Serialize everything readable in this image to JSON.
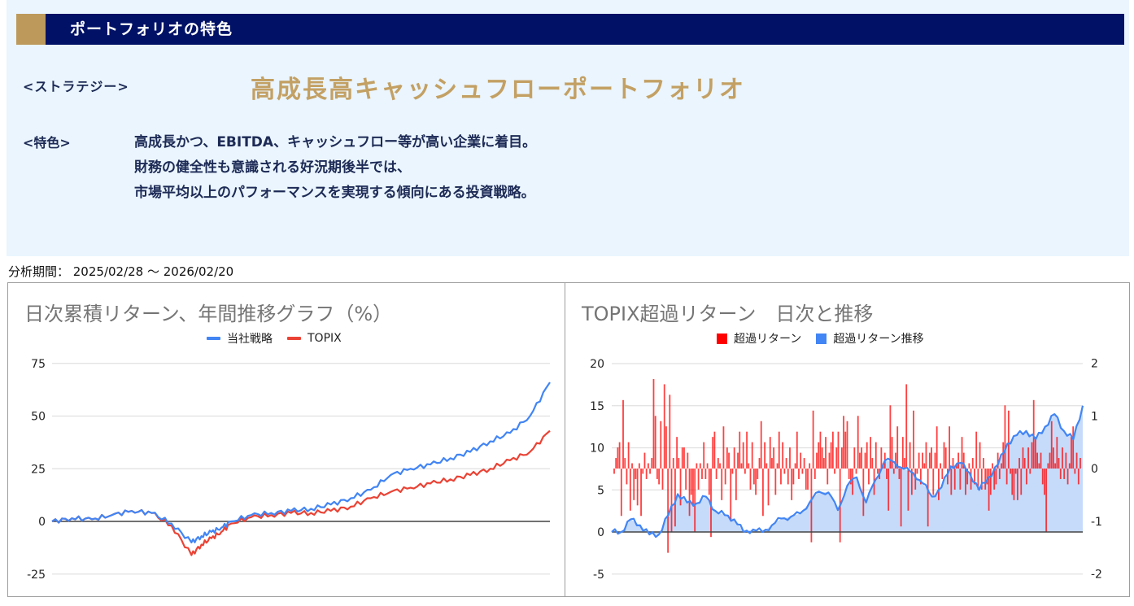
{
  "header": {
    "title": "ポートフォリオの特色",
    "bar_color": "#001166",
    "accent_color": "#bd9a5c"
  },
  "strategy": {
    "label": "<ストラテジー>",
    "name": "高成長高キャッシュフローポートフォリオ",
    "name_color": "#c3a063"
  },
  "features": {
    "label": "<特色>",
    "lines": [
      "高成長かつ、EBITDA、キャッシュフロー等が高い企業に着目。",
      "財務の健全性も意識される好況期後半では、",
      "市場平均以上のパフォーマンスを実現する傾向にある投資戦略。"
    ]
  },
  "period": {
    "text": "分析期間： 2025/02/28 ～ 2026/02/20"
  },
  "chart_data": [
    {
      "type": "line",
      "title": "日次累積リターン、年間推移グラフ（%）",
      "xlabel": "",
      "ylabel": "",
      "ylim": [
        -30,
        80
      ],
      "yticks": [
        75,
        50,
        25,
        0,
        -25
      ],
      "grid": true,
      "legend_position": "top",
      "x": [
        0,
        4,
        8,
        12,
        16,
        20,
        24,
        28,
        30,
        32,
        34,
        36,
        40,
        44,
        48,
        52,
        56,
        60,
        64,
        68,
        72,
        76,
        80,
        84,
        88,
        92,
        96,
        100
      ],
      "series": [
        {
          "name": "当社戦略",
          "color": "#4285f4",
          "values": [
            0,
            1.5,
            1,
            3,
            5,
            4,
            -1,
            -10,
            -7,
            -5,
            -3,
            0,
            3,
            4,
            5,
            6,
            8,
            11,
            15,
            22,
            25,
            27,
            30,
            33,
            38,
            42,
            50,
            66
          ]
        },
        {
          "name": "TOPIX",
          "color": "#ea4335",
          "values": [
            0,
            1.5,
            1,
            3,
            5,
            4,
            -2,
            -16,
            -11,
            -8,
            -5,
            -1,
            2,
            3,
            4,
            4,
            5,
            7,
            11,
            14,
            16,
            18,
            20,
            22,
            25,
            29,
            33,
            43
          ]
        }
      ]
    },
    {
      "type": "bar",
      "title": "TOPIX超過リターン　日次と推移",
      "xlabel": "",
      "ylabel_left": "",
      "ylabel_right": "",
      "ylim_left": [
        -5,
        20
      ],
      "ylim_right": [
        -2,
        2
      ],
      "yticks_left": [
        20,
        15,
        10,
        5,
        0,
        -5
      ],
      "yticks_right": [
        2,
        1,
        0,
        -1,
        -2
      ],
      "grid": true,
      "legend_position": "top",
      "series": [
        {
          "name": "超過リターン",
          "type": "bar",
          "axis": "right",
          "color": "#ff0000",
          "values": [
            -0.1,
            0.2,
            0.4,
            0.5,
            -0.9,
            1.3,
            0.2,
            -0.3,
            0.5,
            -0.8,
            0.1,
            -0.6,
            -0.2,
            -0.7,
            0.1,
            -0.9,
            -0.1,
            0.3,
            -0.2,
            0.1,
            -0.1,
            0.2,
            1.7,
            1.0,
            -0.2,
            -0.3,
            0.9,
            -0.4,
            1.6,
            0.8,
            -1.6,
            1.4,
            -1.2,
            0.2,
            -1.1,
            0.6,
            0.2,
            -0.7,
            0.4,
            0.4,
            -0.4,
            0.3,
            -0.9,
            -0.5,
            -0.7,
            -1.2,
            0.1,
            -0.4,
            0.1,
            -0.2,
            0.5,
            -0.2,
            0.1,
            -0.5,
            -1.3,
            0.6,
            0.7,
            -0.2,
            0.2,
            0.1,
            -0.6,
            0.8,
            -0.3,
            0.4,
            0.3,
            -1.0,
            -0.1,
            0.4,
            -0.6,
            0.3,
            0.7,
            0.1,
            0.5,
            -0.1,
            0.7,
            0.1,
            -0.4,
            0.5,
            -0.3,
            -0.5,
            -0.2,
            0.2,
            0.9,
            -0.9,
            0.5,
            0.1,
            -0.7,
            0.6,
            0.2,
            0.4,
            -0.5,
            0.1,
            0.7,
            -0.3,
            0.5,
            -0.1,
            0.2,
            -0.3,
            0.4,
            -0.6,
            -0.3,
            0.1,
            0.7,
            -0.2,
            0.3,
            -0.1,
            0.2,
            -0.4,
            -0.4,
            0.1,
            -1.4,
            1.1,
            -0.2,
            0.3,
            0.5,
            0.7,
            0.4,
            0.2,
            0.6,
            -0.3,
            0.3,
            0.5,
            0.7,
            -0.1,
            0.4,
            0.7,
            -1.4,
            0.4,
            1.0,
            0.7,
            0.9,
            -0.2,
            -0.3,
            -0.5,
            0.4,
            -0.1,
            1.0,
            0.3,
            0.4,
            -0.9,
            0.3,
            0.5,
            -0.3,
            0.6,
            0.2,
            -0.5,
            0.5,
            -0.1,
            -0.2,
            0.4,
            0.1,
            0.3,
            -0.2,
            -0.8,
            1.2,
            0.6,
            -0.1,
            0.3,
            0.8,
            -0.2,
            -1.1,
            0.6,
            0.2,
            1.6,
            -0.8,
            0.5,
            -0.5,
            1.1,
            -0.4,
            -0.1,
            0.3,
            -0.3,
            0.3,
            0.1,
            0.5,
            -1.1,
            0.3,
            0.4,
            -0.5,
            0.3,
            0.8,
            -0.6,
            0.1,
            -0.2,
            0.5,
            0.4,
            -0.3,
            0.8,
            -0.5,
            0.2,
            -0.4,
            0.1,
            0.3,
            -0.4,
            0.6,
            0.3,
            -0.5,
            -0.3,
            0.1,
            -0.4,
            0.2,
            -0.3,
            0.7,
            -0.4,
            0.5,
            -0.4,
            0.2,
            -0.4,
            -0.3,
            -0.8,
            -0.5,
            0.1,
            -0.4,
            -0.3,
            0.3,
            -0.2,
            0.1,
            0.5,
            1.2,
            -0.3,
            1.1,
            -0.1,
            -0.5,
            -0.6,
            -0.1,
            -0.6,
            0.2,
            -0.5,
            0.4,
            0.2,
            -0.3,
            0.4,
            -0.1,
            0.5,
            1.3,
            0.6,
            0.3,
            0.1,
            0.3,
            -0.3,
            -0.5,
            -1.2,
            0.1,
            0.3,
            0.9,
            0.4,
            0.1,
            0.6,
            0.2,
            -0.2,
            0.4,
            -0.2,
            0.3,
            -0.3,
            0.1,
            0.6,
            0.8,
            -0.1,
            0.3,
            -0.3,
            0.2
          ]
        },
        {
          "name": "超過リターン推移",
          "type": "area",
          "axis": "left",
          "color": "#4285f4",
          "fill": "#c6dbfa",
          "x": [
            0,
            2,
            4,
            6,
            8,
            10,
            12,
            14,
            16,
            18,
            20,
            22,
            24,
            26,
            28,
            30,
            32,
            34,
            36,
            38,
            40,
            42,
            44,
            46,
            48,
            50,
            52,
            54,
            56,
            58,
            60,
            62,
            64,
            66,
            68,
            70,
            72,
            74,
            76,
            78,
            80,
            82,
            84,
            86,
            88,
            90,
            92,
            94,
            96,
            98,
            100
          ],
          "values": [
            0,
            0,
            1.5,
            0.8,
            -0.3,
            -0.3,
            2,
            4.5,
            3.5,
            3.4,
            4.2,
            2.5,
            2,
            1.5,
            0,
            0.3,
            0,
            0.8,
            1.6,
            1.8,
            2.2,
            3.5,
            4.8,
            4.7,
            2.6,
            5.5,
            6.5,
            3.5,
            6.2,
            8.5,
            8.3,
            7.5,
            7,
            5.8,
            4.2,
            5.3,
            7.8,
            8.2,
            7,
            5,
            6.5,
            8,
            10.5,
            11.5,
            12,
            11,
            12.5,
            14,
            12,
            11,
            15
          ]
        }
      ]
    }
  ]
}
